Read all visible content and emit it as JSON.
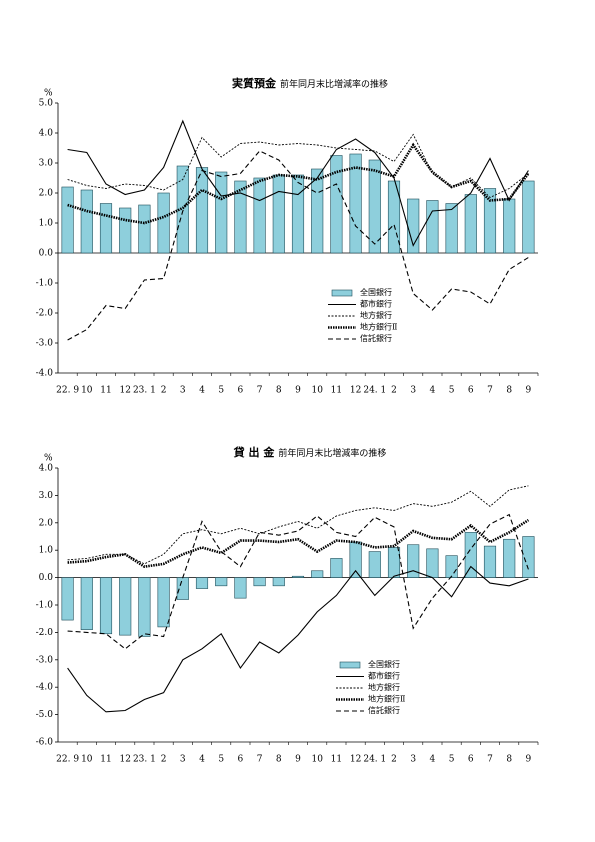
{
  "chart_data": [
    {
      "type": "bar-line",
      "title": "実質預金",
      "subtitle": "前年同月末比増減率の推移",
      "y_unit": "%",
      "categories": [
        "22. 9",
        "10",
        "11",
        "12",
        "23. 1",
        "2",
        "3",
        "4",
        "5",
        "6",
        "7",
        "8",
        "9",
        "10",
        "11",
        "12",
        "24. 1",
        "2",
        "3",
        "4",
        "5",
        "6",
        "7",
        "8",
        "9"
      ],
      "ylim": [
        -4,
        5
      ],
      "yticks": [
        {
          "value": 5,
          "label": "5.0"
        },
        {
          "value": 4,
          "label": "4.0"
        },
        {
          "value": 3,
          "label": "3.0"
        },
        {
          "value": 2,
          "label": "2.0"
        },
        {
          "value": 1,
          "label": "1.0"
        },
        {
          "value": 0,
          "label": "0.0"
        },
        {
          "value": -1,
          "label": "-1.0"
        },
        {
          "value": -2,
          "label": "-2.0"
        },
        {
          "value": -3,
          "label": "-3.0"
        },
        {
          "value": -4,
          "label": "-4.0"
        }
      ],
      "series": [
        {
          "name": "全国銀行",
          "style": "bar",
          "color": "#8ecfdc",
          "values": [
            2.2,
            2.1,
            1.65,
            1.5,
            1.6,
            2.0,
            2.9,
            2.85,
            2.7,
            2.4,
            2.5,
            2.6,
            2.6,
            2.8,
            3.25,
            3.3,
            3.1,
            2.4,
            1.8,
            1.75,
            1.65,
            1.95,
            2.15,
            1.8,
            2.4
          ]
        },
        {
          "name": "都市銀行",
          "style": "solid",
          "color": "#000000",
          "values": [
            3.45,
            3.35,
            2.3,
            1.95,
            2.1,
            2.85,
            4.4,
            2.8,
            1.9,
            2.0,
            1.75,
            2.05,
            1.95,
            2.5,
            3.45,
            3.8,
            3.35,
            2.5,
            0.25,
            1.4,
            1.45,
            2.0,
            3.15,
            1.75,
            2.75
          ]
        },
        {
          "name": "地方銀行",
          "style": "dotted",
          "color": "#000000",
          "values": [
            2.45,
            2.25,
            2.15,
            2.3,
            2.25,
            2.1,
            2.45,
            3.85,
            3.2,
            3.65,
            3.7,
            3.6,
            3.65,
            3.6,
            3.5,
            3.45,
            3.4,
            3.05,
            3.95,
            2.65,
            2.2,
            2.5,
            1.85,
            2.15,
            2.65
          ]
        },
        {
          "name": "地方銀行Ⅱ",
          "style": "thick-dotted",
          "color": "#000000",
          "values": [
            1.6,
            1.4,
            1.25,
            1.1,
            1.0,
            1.2,
            1.5,
            2.1,
            1.8,
            2.1,
            2.4,
            2.6,
            2.55,
            2.45,
            2.7,
            2.85,
            2.75,
            2.55,
            3.6,
            2.7,
            2.2,
            2.4,
            1.75,
            1.8,
            2.65
          ]
        },
        {
          "name": "信託銀行",
          "style": "dashed",
          "color": "#000000",
          "values": [
            -2.9,
            -2.55,
            -1.75,
            -1.85,
            -0.9,
            -0.85,
            1.4,
            2.75,
            2.55,
            2.65,
            3.4,
            3.1,
            2.35,
            2.0,
            2.3,
            0.9,
            0.3,
            0.95,
            -1.35,
            -1.9,
            -1.2,
            -1.3,
            -1.7,
            -0.55,
            -0.15
          ]
        }
      ]
    },
    {
      "type": "bar-line",
      "title": "貸 出 金",
      "subtitle": "前年同月末比増減率の推移",
      "y_unit": "%",
      "categories": [
        "22. 9",
        "10",
        "11",
        "12",
        "23. 1",
        "2",
        "3",
        "4",
        "5",
        "6",
        "7",
        "8",
        "9",
        "10",
        "11",
        "12",
        "24. 1",
        "2",
        "3",
        "4",
        "5",
        "6",
        "7",
        "8",
        "9"
      ],
      "ylim": [
        -6,
        4
      ],
      "yticks": [
        {
          "value": 4,
          "label": "4.0"
        },
        {
          "value": 3,
          "label": "3.0"
        },
        {
          "value": 2,
          "label": "2.0"
        },
        {
          "value": 1,
          "label": "1.0"
        },
        {
          "value": 0,
          "label": "0.0"
        },
        {
          "value": -1,
          "label": "-1.0"
        },
        {
          "value": -2,
          "label": "-2.0"
        },
        {
          "value": -3,
          "label": "-3.0"
        },
        {
          "value": -4,
          "label": "-4.0"
        },
        {
          "value": -5,
          "label": "-5.0"
        },
        {
          "value": -6,
          "label": "-6.0"
        }
      ],
      "series": [
        {
          "name": "全国銀行",
          "style": "bar",
          "color": "#8ecfdc",
          "values": [
            -1.55,
            -1.9,
            -2.05,
            -2.1,
            -2.15,
            -1.8,
            -0.8,
            -0.4,
            -0.3,
            -0.75,
            -0.3,
            -0.3,
            0.05,
            0.25,
            0.7,
            1.3,
            0.95,
            1.1,
            1.2,
            1.05,
            0.8,
            1.65,
            1.15,
            1.4,
            1.5
          ]
        },
        {
          "name": "都市銀行",
          "style": "solid",
          "color": "#000000",
          "values": [
            -3.3,
            -4.3,
            -4.9,
            -4.85,
            -4.45,
            -4.2,
            -3.0,
            -2.6,
            -2.05,
            -3.3,
            -2.35,
            -2.75,
            -2.1,
            -1.25,
            -0.65,
            0.25,
            -0.65,
            0.05,
            0.25,
            0.0,
            -0.7,
            0.4,
            -0.2,
            -0.3,
            -0.05
          ]
        },
        {
          "name": "地方銀行",
          "style": "dotted",
          "color": "#000000",
          "values": [
            0.65,
            0.7,
            0.85,
            0.85,
            0.5,
            0.85,
            1.6,
            1.75,
            1.6,
            1.8,
            1.6,
            1.85,
            2.05,
            1.8,
            2.25,
            2.45,
            2.55,
            2.45,
            2.7,
            2.6,
            2.75,
            3.15,
            2.6,
            3.2,
            3.35
          ]
        },
        {
          "name": "地方銀行Ⅱ",
          "style": "thick-dotted",
          "color": "#000000",
          "values": [
            0.55,
            0.6,
            0.75,
            0.85,
            0.4,
            0.5,
            0.85,
            1.1,
            0.9,
            1.35,
            1.35,
            1.3,
            1.4,
            0.95,
            1.35,
            1.3,
            1.1,
            1.15,
            1.7,
            1.45,
            1.4,
            1.9,
            1.3,
            1.65,
            2.1
          ]
        },
        {
          "name": "信託銀行",
          "style": "dashed",
          "color": "#000000",
          "values": [
            -1.95,
            -2.0,
            -2.05,
            -2.6,
            -2.05,
            -2.15,
            0.0,
            2.05,
            0.95,
            0.4,
            1.65,
            1.55,
            1.7,
            2.25,
            1.65,
            1.5,
            2.2,
            1.85,
            -1.85,
            -0.75,
            0.05,
            1.05,
            1.95,
            2.3,
            0.3
          ]
        }
      ]
    }
  ]
}
